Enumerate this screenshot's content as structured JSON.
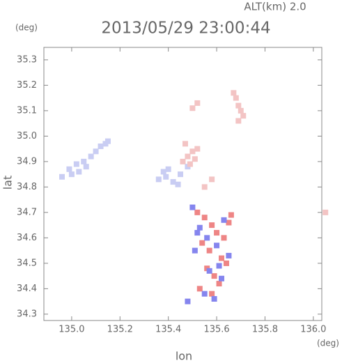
{
  "chart_data": {
    "type": "scatter",
    "title": "2013/05/29 23:00:44",
    "subtitle": "ALT(km) 2.0",
    "y_unit": "(deg)",
    "x_unit": "(deg)",
    "x_label": "lon",
    "y_label": "lat",
    "xlim": [
      134.885,
      136.035
    ],
    "ylim": [
      34.275,
      35.349
    ],
    "xticks": [
      {
        "value": 135,
        "label": "135.0"
      },
      135.2,
      135.4,
      135.6,
      135.8,
      {
        "value": 136,
        "label": "136.0"
      }
    ],
    "yticks": [
      34.3,
      34.4,
      34.5,
      34.6,
      34.7,
      34.8,
      34.9,
      {
        "value": 35,
        "label": "35.0"
      },
      35.1,
      35.2,
      35.3
    ],
    "series": [
      {
        "color": "#c9cdf3",
        "x": [
          134.96,
          134.99,
          135.02,
          135.05,
          135.08,
          135.1,
          135.12,
          135.14,
          135.15,
          135.06,
          135.03,
          135.0,
          135.36,
          135.39,
          135.42,
          135.45,
          135.48,
          135.4,
          135.44,
          135.38
        ],
        "values": [
          34.84,
          34.87,
          34.89,
          34.9,
          34.92,
          34.94,
          34.96,
          34.97,
          34.98,
          34.88,
          34.86,
          34.85,
          34.83,
          34.84,
          34.82,
          34.85,
          34.88,
          34.87,
          34.81,
          34.86
        ]
      },
      {
        "color": "#f3c4c4",
        "x": [
          135.46,
          135.48,
          135.5,
          135.52,
          135.47,
          135.49,
          135.51,
          135.5,
          135.52,
          135.67,
          135.68,
          135.69,
          135.7,
          135.71,
          135.69,
          136.05,
          135.55,
          135.58
        ],
        "values": [
          34.9,
          34.92,
          34.94,
          34.95,
          34.97,
          34.89,
          34.91,
          35.11,
          35.13,
          35.17,
          35.15,
          35.12,
          35.1,
          35.08,
          35.06,
          34.7,
          34.8,
          34.83
        ]
      },
      {
        "color": "#ee8585",
        "x": [
          135.52,
          135.55,
          135.58,
          135.6,
          135.63,
          135.65,
          135.57,
          135.62,
          135.59,
          135.53,
          135.56,
          135.64,
          135.61,
          135.54,
          135.66,
          135.58
        ],
        "values": [
          34.7,
          34.68,
          34.65,
          34.62,
          34.6,
          34.66,
          34.55,
          34.52,
          34.45,
          34.4,
          34.48,
          34.5,
          34.42,
          34.58,
          34.69,
          34.38
        ]
      },
      {
        "color": "#8585ee",
        "x": [
          135.5,
          135.53,
          135.56,
          135.6,
          135.63,
          135.51,
          135.57,
          135.61,
          135.55,
          135.59,
          135.48,
          135.65,
          135.62,
          135.52
        ],
        "values": [
          34.72,
          34.64,
          34.6,
          34.57,
          34.67,
          34.55,
          34.47,
          34.49,
          34.38,
          34.36,
          34.35,
          34.53,
          34.44,
          34.62
        ]
      }
    ]
  }
}
